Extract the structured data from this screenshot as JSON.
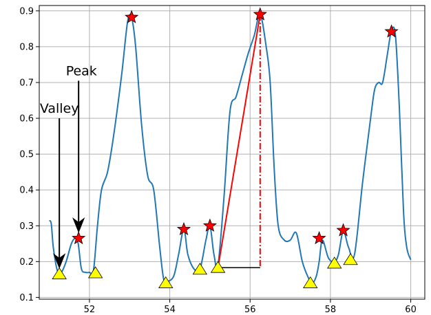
{
  "chart_data": {
    "type": "line",
    "title": "",
    "xlabel": "",
    "ylabel": "",
    "xlim": [
      50.75,
      60.35
    ],
    "ylim": [
      0.095,
      0.915
    ],
    "xticks": [
      52,
      54,
      56,
      58,
      60
    ],
    "yticks": [
      0.1,
      0.2,
      0.3,
      0.4,
      0.5,
      0.6,
      0.7,
      0.8,
      0.9
    ],
    "grid": true,
    "colors": {
      "line": "#1f77b4",
      "peak_marker": "#ff0000",
      "valley_marker": "#ffff00",
      "height_line": "#ff0000",
      "base_line": "#000000",
      "grid": "#b0b0b0"
    },
    "series": [
      {
        "x": [
          51.0,
          51.05,
          51.1,
          51.2,
          51.3,
          51.42,
          51.55,
          51.65,
          51.72,
          51.8,
          51.9,
          52.0,
          52.1,
          52.2,
          52.3,
          52.45,
          52.6,
          52.8,
          52.95,
          53.05,
          53.15,
          53.3,
          53.45,
          53.6,
          53.75,
          53.85,
          53.95,
          54.1,
          54.22,
          54.35,
          54.45,
          54.6,
          54.75,
          54.9,
          55.0,
          55.1,
          55.2,
          55.35,
          55.5,
          55.65,
          55.8,
          55.95,
          56.1,
          56.25,
          56.4,
          56.5,
          56.6,
          56.7,
          56.85,
          57.0,
          57.15,
          57.3,
          57.45,
          57.55,
          57.65,
          57.72,
          57.8,
          57.95,
          58.1,
          58.2,
          58.32,
          58.45,
          58.6,
          58.8,
          59.0,
          59.1,
          59.2,
          59.3,
          59.42,
          59.52,
          59.62,
          59.72,
          59.82,
          59.9,
          60.0
        ],
        "y": [
          0.315,
          0.305,
          0.24,
          0.175,
          0.17,
          0.2,
          0.25,
          0.265,
          0.25,
          0.18,
          0.17,
          0.17,
          0.175,
          0.3,
          0.4,
          0.45,
          0.55,
          0.72,
          0.87,
          0.88,
          0.8,
          0.58,
          0.44,
          0.4,
          0.24,
          0.15,
          0.145,
          0.16,
          0.22,
          0.29,
          0.22,
          0.18,
          0.178,
          0.26,
          0.3,
          0.22,
          0.19,
          0.38,
          0.62,
          0.66,
          0.72,
          0.78,
          0.83,
          0.89,
          0.8,
          0.7,
          0.46,
          0.3,
          0.26,
          0.26,
          0.28,
          0.2,
          0.155,
          0.14,
          0.16,
          0.2,
          0.26,
          0.21,
          0.2,
          0.22,
          0.285,
          0.24,
          0.22,
          0.42,
          0.6,
          0.68,
          0.7,
          0.7,
          0.78,
          0.845,
          0.83,
          0.62,
          0.34,
          0.24,
          0.205
        ]
      }
    ],
    "peaks": {
      "x": [
        51.73,
        53.05,
        54.35,
        55.0,
        56.25,
        57.72,
        58.32,
        59.52
      ],
      "y": [
        0.265,
        0.882,
        0.29,
        0.3,
        0.89,
        0.265,
        0.287,
        0.842
      ]
    },
    "valleys": {
      "x": [
        51.25,
        52.15,
        53.9,
        54.75,
        55.2,
        57.5,
        58.1,
        58.5
      ],
      "y": [
        0.165,
        0.168,
        0.14,
        0.178,
        0.183,
        0.14,
        0.195,
        0.205
      ]
    },
    "annotations": [
      {
        "label": "Peak",
        "text_at": [
          51.8,
          0.72
        ],
        "arrow_to": [
          51.73,
          0.265
        ]
      },
      {
        "label": "Valley",
        "text_at": [
          51.25,
          0.615
        ],
        "arrow_to": [
          51.25,
          0.165
        ]
      }
    ],
    "height_line": {
      "from": [
        55.2,
        0.183
      ],
      "to": [
        56.25,
        0.89
      ],
      "vertical_x": 56.25,
      "base_y": 0.183
    }
  }
}
